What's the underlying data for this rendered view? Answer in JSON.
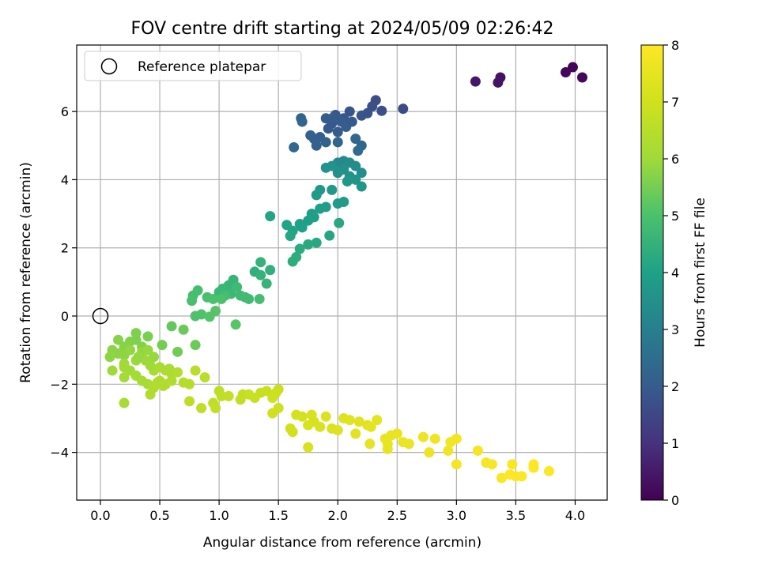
{
  "chart_data": {
    "type": "scatter",
    "title": "FOV centre drift starting at 2024/05/09 02:26:42",
    "xlabel": "Angular distance from reference (arcmin)",
    "ylabel": "Rotation from reference (arcmin)",
    "xlim": [
      -0.2,
      4.27
    ],
    "ylim": [
      -5.4,
      7.95
    ],
    "xticks": [
      0.0,
      0.5,
      1.0,
      1.5,
      2.0,
      2.5,
      3.0,
      3.5,
      4.0
    ],
    "xtick_labels": [
      "0.0",
      "0.5",
      "1.0",
      "1.5",
      "2.0",
      "2.5",
      "3.0",
      "3.5",
      "4.0"
    ],
    "yticks": [
      -4,
      -2,
      0,
      2,
      4,
      6
    ],
    "ytick_labels": [
      "−4",
      "−2",
      "0",
      "2",
      "4",
      "6"
    ],
    "grid": true,
    "legend": {
      "placement": "upper-left",
      "entries": [
        "Reference platepar"
      ]
    },
    "reference_point": {
      "x": 0.0,
      "y": 0.0
    },
    "colorbar": {
      "label": "Hours from first FF file",
      "range": [
        0,
        8
      ],
      "ticks": [
        0,
        1,
        2,
        3,
        4,
        5,
        6,
        7,
        8
      ],
      "tick_labels": [
        "0",
        "1",
        "2",
        "3",
        "4",
        "5",
        "6",
        "7",
        "8"
      ],
      "colormap": "viridis"
    },
    "points": [
      [
        3.98,
        7.3,
        0.1
      ],
      [
        4.06,
        7.0,
        0.12
      ],
      [
        3.92,
        7.15,
        0.15
      ],
      [
        3.37,
        7.0,
        0.35
      ],
      [
        3.35,
        6.85,
        0.4
      ],
      [
        3.16,
        6.88,
        0.45
      ],
      [
        2.55,
        6.08,
        1.6
      ],
      [
        2.32,
        6.33,
        1.65
      ],
      [
        2.29,
        6.15,
        1.7
      ],
      [
        2.37,
        6.02,
        1.7
      ],
      [
        2.25,
        5.95,
        1.75
      ],
      [
        2.2,
        5.88,
        1.8
      ],
      [
        2.1,
        6.0,
        1.8
      ],
      [
        2.05,
        5.8,
        1.85
      ],
      [
        1.98,
        5.9,
        1.9
      ],
      [
        1.95,
        5.65,
        1.9
      ],
      [
        1.92,
        5.5,
        1.95
      ],
      [
        2.0,
        5.4,
        2.0
      ],
      [
        1.9,
        5.8,
        2.0
      ],
      [
        2.03,
        5.7,
        2.0
      ],
      [
        2.07,
        5.55,
        2.05
      ],
      [
        1.85,
        5.25,
        2.1
      ],
      [
        1.8,
        5.2,
        2.1
      ],
      [
        1.77,
        5.3,
        2.15
      ],
      [
        1.82,
        5.0,
        2.2
      ],
      [
        1.9,
        5.1,
        2.2
      ],
      [
        2.0,
        5.1,
        2.25
      ],
      [
        1.69,
        5.8,
        2.25
      ],
      [
        1.7,
        5.7,
        2.3
      ],
      [
        1.63,
        4.95,
        2.3
      ],
      [
        2.2,
        5.0,
        2.3
      ],
      [
        2.15,
        5.2,
        2.35
      ],
      [
        2.17,
        4.85,
        2.4
      ],
      [
        1.95,
        5.8,
        2.0
      ],
      [
        2.12,
        5.7,
        1.95
      ],
      [
        2.0,
        4.5,
        3.3
      ],
      [
        2.05,
        4.55,
        3.35
      ],
      [
        2.1,
        4.5,
        3.4
      ],
      [
        2.15,
        4.4,
        3.4
      ],
      [
        2.2,
        4.2,
        3.45
      ],
      [
        2.0,
        4.2,
        3.5
      ],
      [
        2.05,
        4.3,
        3.5
      ],
      [
        1.95,
        4.4,
        3.55
      ],
      [
        1.9,
        4.35,
        3.6
      ],
      [
        2.1,
        4.1,
        3.6
      ],
      [
        2.15,
        4.0,
        3.65
      ],
      [
        2.2,
        3.8,
        3.7
      ],
      [
        2.08,
        3.95,
        3.7
      ],
      [
        1.95,
        3.7,
        3.75
      ],
      [
        1.85,
        3.7,
        3.75
      ],
      [
        1.82,
        3.55,
        3.8
      ],
      [
        2.0,
        3.3,
        3.8
      ],
      [
        2.05,
        3.35,
        3.85
      ],
      [
        1.9,
        3.2,
        3.85
      ],
      [
        1.85,
        3.15,
        3.9
      ],
      [
        1.78,
        3.0,
        3.9
      ],
      [
        1.75,
        2.8,
        3.95
      ],
      [
        1.8,
        2.9,
        3.95
      ],
      [
        1.68,
        2.7,
        4.0
      ],
      [
        1.7,
        2.6,
        4.0
      ],
      [
        1.62,
        2.5,
        4.05
      ],
      [
        1.43,
        2.93,
        4.1
      ],
      [
        1.57,
        2.67,
        4.1
      ],
      [
        1.6,
        2.35,
        4.15
      ],
      [
        1.93,
        2.36,
        4.15
      ],
      [
        2.01,
        2.73,
        4.2
      ],
      [
        1.82,
        2.15,
        4.2
      ],
      [
        1.75,
        2.1,
        4.25
      ],
      [
        1.68,
        1.97,
        4.3
      ],
      [
        1.62,
        1.6,
        4.35
      ],
      [
        1.65,
        1.73,
        4.35
      ],
      [
        1.3,
        1.3,
        4.4
      ],
      [
        1.43,
        1.35,
        4.45
      ],
      [
        1.35,
        1.58,
        4.5
      ],
      [
        1.35,
        1.2,
        4.5
      ],
      [
        1.4,
        0.95,
        4.55
      ],
      [
        1.12,
        1.06,
        4.6
      ],
      [
        1.08,
        0.9,
        4.6
      ],
      [
        1.03,
        0.8,
        4.65
      ],
      [
        1.0,
        0.7,
        4.7
      ],
      [
        1.1,
        0.65,
        4.7
      ],
      [
        1.15,
        0.85,
        4.75
      ],
      [
        1.18,
        0.6,
        4.75
      ],
      [
        1.22,
        0.55,
        4.8
      ],
      [
        1.25,
        0.5,
        4.8
      ],
      [
        1.05,
        0.6,
        4.85
      ],
      [
        0.82,
        0.75,
        4.9
      ],
      [
        0.78,
        0.6,
        4.9
      ],
      [
        0.77,
        0.45,
        4.95
      ],
      [
        0.9,
        0.55,
        4.95
      ],
      [
        0.95,
        0.5,
        5.0
      ],
      [
        0.8,
        0.0,
        5.05
      ],
      [
        0.85,
        0.05,
        5.05
      ],
      [
        0.92,
        -0.02,
        5.1
      ],
      [
        0.97,
        0.15,
        5.1
      ],
      [
        1.02,
        0.5,
        5.0
      ],
      [
        1.14,
        -0.25,
        5.15
      ],
      [
        1.34,
        0.5,
        4.85
      ],
      [
        0.6,
        -0.3,
        5.3
      ],
      [
        0.7,
        -0.4,
        5.35
      ],
      [
        0.8,
        -0.85,
        5.4
      ],
      [
        0.65,
        -1.05,
        5.45
      ],
      [
        0.52,
        -0.85,
        5.5
      ],
      [
        0.4,
        -0.6,
        5.55
      ],
      [
        0.3,
        -0.5,
        5.6
      ],
      [
        0.3,
        -0.7,
        5.6
      ],
      [
        0.35,
        -0.9,
        5.65
      ],
      [
        0.25,
        -0.75,
        5.65
      ],
      [
        0.15,
        -0.7,
        5.7
      ],
      [
        0.2,
        -0.9,
        5.7
      ],
      [
        0.1,
        -1.0,
        5.75
      ],
      [
        0.15,
        -1.1,
        5.75
      ],
      [
        0.08,
        -1.2,
        5.8
      ],
      [
        0.2,
        -1.15,
        5.8
      ],
      [
        0.25,
        -1.0,
        5.85
      ],
      [
        0.35,
        -1.05,
        5.85
      ],
      [
        0.4,
        -1.0,
        5.9
      ],
      [
        0.45,
        -1.2,
        5.9
      ],
      [
        0.38,
        -1.3,
        5.95
      ],
      [
        0.3,
        -1.3,
        5.95
      ],
      [
        0.2,
        -1.4,
        6.0
      ],
      [
        0.1,
        -1.6,
        6.0
      ],
      [
        0.2,
        -1.5,
        6.05
      ],
      [
        0.25,
        -1.6,
        6.05
      ],
      [
        0.2,
        -1.8,
        6.1
      ],
      [
        0.3,
        -1.75,
        6.1
      ],
      [
        0.35,
        -1.9,
        6.15
      ],
      [
        0.4,
        -2.0,
        6.15
      ],
      [
        0.45,
        -1.6,
        6.2
      ],
      [
        0.5,
        -1.5,
        6.2
      ],
      [
        0.55,
        -1.6,
        6.25
      ],
      [
        0.6,
        -1.7,
        6.25
      ],
      [
        0.6,
        -1.9,
        6.3
      ],
      [
        0.5,
        -1.9,
        6.3
      ],
      [
        0.45,
        -2.1,
        6.35
      ],
      [
        0.42,
        -2.3,
        6.35
      ],
      [
        0.55,
        -2.0,
        6.4
      ],
      [
        0.65,
        -1.65,
        6.4
      ],
      [
        0.7,
        -1.95,
        6.45
      ],
      [
        0.75,
        -2.0,
        6.45
      ],
      [
        0.8,
        -1.6,
        6.5
      ],
      [
        0.88,
        -1.8,
        6.5
      ],
      [
        0.2,
        -2.55,
        6.2
      ],
      [
        0.48,
        -1.95,
        6.3
      ],
      [
        0.32,
        -1.2,
        5.9
      ],
      [
        0.42,
        -1.45,
        6.0
      ],
      [
        0.53,
        -2.05,
        6.35
      ],
      [
        0.58,
        -1.55,
        6.25
      ],
      [
        1.0,
        -2.2,
        6.6
      ],
      [
        0.95,
        -2.55,
        6.65
      ],
      [
        1.02,
        -2.35,
        6.65
      ],
      [
        0.97,
        -2.7,
        6.7
      ],
      [
        1.08,
        -2.35,
        6.7
      ],
      [
        1.2,
        -2.3,
        6.75
      ],
      [
        1.18,
        -2.45,
        6.75
      ],
      [
        1.25,
        -2.3,
        6.8
      ],
      [
        1.35,
        -2.25,
        6.8
      ],
      [
        1.3,
        -2.4,
        6.85
      ],
      [
        1.4,
        -2.2,
        6.85
      ],
      [
        1.48,
        -2.25,
        6.9
      ],
      [
        1.5,
        -2.15,
        6.9
      ],
      [
        1.45,
        -2.4,
        6.95
      ],
      [
        1.5,
        -2.7,
        6.95
      ],
      [
        1.45,
        -2.85,
        7.0
      ],
      [
        0.75,
        -2.5,
        6.6
      ],
      [
        0.85,
        -2.7,
        6.65
      ],
      [
        1.6,
        -3.3,
        7.05
      ],
      [
        1.62,
        -3.4,
        7.05
      ],
      [
        1.65,
        -2.9,
        7.1
      ],
      [
        1.7,
        -2.95,
        7.1
      ],
      [
        1.78,
        -2.9,
        7.15
      ],
      [
        1.8,
        -3.1,
        7.15
      ],
      [
        1.75,
        -3.2,
        7.2
      ],
      [
        1.85,
        -3.25,
        7.2
      ],
      [
        1.9,
        -2.95,
        7.25
      ],
      [
        1.95,
        -3.3,
        7.25
      ],
      [
        2.0,
        -3.35,
        7.3
      ],
      [
        2.05,
        -3.0,
        7.3
      ],
      [
        2.1,
        -3.05,
        7.35
      ],
      [
        2.15,
        -3.45,
        7.35
      ],
      [
        2.18,
        -3.1,
        7.4
      ],
      [
        2.25,
        -3.2,
        7.4
      ],
      [
        2.28,
        -3.25,
        7.45
      ],
      [
        2.33,
        -3.05,
        7.45
      ],
      [
        2.4,
        -3.6,
        7.5
      ],
      [
        2.42,
        -3.75,
        7.5
      ],
      [
        2.45,
        -3.5,
        7.55
      ],
      [
        2.5,
        -3.45,
        7.55
      ],
      [
        2.55,
        -3.7,
        7.6
      ],
      [
        2.6,
        -3.75,
        7.6
      ],
      [
        2.72,
        -3.55,
        7.65
      ],
      [
        2.77,
        -4.0,
        7.65
      ],
      [
        2.82,
        -3.6,
        7.7
      ],
      [
        2.93,
        -3.95,
        7.7
      ],
      [
        2.95,
        -3.7,
        7.75
      ],
      [
        3.0,
        -3.6,
        7.75
      ],
      [
        1.75,
        -3.85,
        7.2
      ],
      [
        2.42,
        -3.9,
        7.5
      ],
      [
        2.27,
        -3.75,
        7.45
      ],
      [
        3.0,
        -4.35,
        7.8
      ],
      [
        3.18,
        -3.95,
        7.8
      ],
      [
        3.25,
        -4.3,
        7.85
      ],
      [
        3.3,
        -4.35,
        7.85
      ],
      [
        3.47,
        -4.35,
        7.9
      ],
      [
        3.38,
        -4.75,
        7.9
      ],
      [
        3.45,
        -4.65,
        7.95
      ],
      [
        3.5,
        -4.7,
        7.95
      ],
      [
        3.55,
        -4.7,
        8.0
      ],
      [
        3.65,
        -4.35,
        8.0
      ],
      [
        3.65,
        -4.45,
        8.0
      ],
      [
        3.78,
        -4.55,
        8.0
      ]
    ]
  }
}
